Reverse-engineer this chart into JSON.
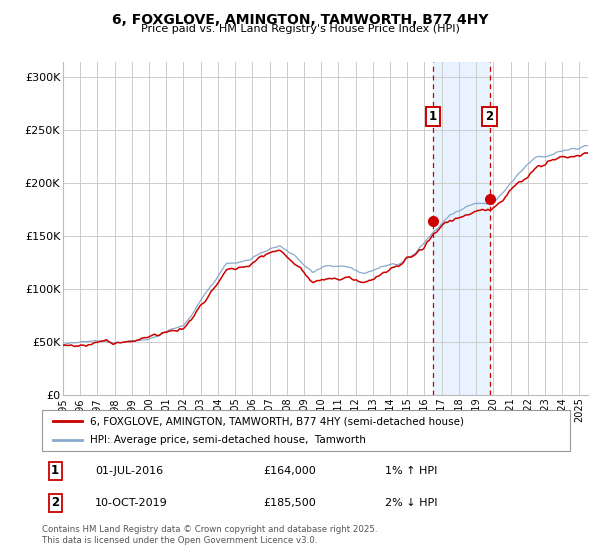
{
  "title": "6, FOXGLOVE, AMINGTON, TAMWORTH, B77 4HY",
  "subtitle": "Price paid vs. HM Land Registry's House Price Index (HPI)",
  "ylabel_ticks": [
    "£0",
    "£50K",
    "£100K",
    "£150K",
    "£200K",
    "£250K",
    "£300K"
  ],
  "ytick_values": [
    0,
    50000,
    100000,
    150000,
    200000,
    250000,
    300000
  ],
  "ylim": [
    0,
    315000
  ],
  "xlim_start": 1995.0,
  "xlim_end": 2025.5,
  "xtick_years": [
    1995,
    1996,
    1997,
    1998,
    1999,
    2000,
    2001,
    2002,
    2003,
    2004,
    2005,
    2006,
    2007,
    2008,
    2009,
    2010,
    2011,
    2012,
    2013,
    2014,
    2015,
    2016,
    2017,
    2018,
    2019,
    2020,
    2021,
    2022,
    2023,
    2024,
    2025
  ],
  "red_line_color": "#cc0000",
  "blue_line_color": "#88aacc",
  "marker1_x": 2016.5,
  "marker1_y": 164000,
  "marker2_x": 2019.78,
  "marker2_y": 185500,
  "annotation1_date": "01-JUL-2016",
  "annotation1_price": "£164,000",
  "annotation1_hpi": "1% ↑ HPI",
  "annotation2_date": "10-OCT-2019",
  "annotation2_price": "£185,500",
  "annotation2_hpi": "2% ↓ HPI",
  "legend_label1": "6, FOXGLOVE, AMINGTON, TAMWORTH, B77 4HY (semi-detached house)",
  "legend_label2": "HPI: Average price, semi-detached house,  Tamworth",
  "footer": "Contains HM Land Registry data © Crown copyright and database right 2025.\nThis data is licensed under the Open Government Licence v3.0.",
  "shade_start": 2016.5,
  "shade_end": 2019.78,
  "background_color": "#ffffff",
  "grid_color": "#cccccc"
}
